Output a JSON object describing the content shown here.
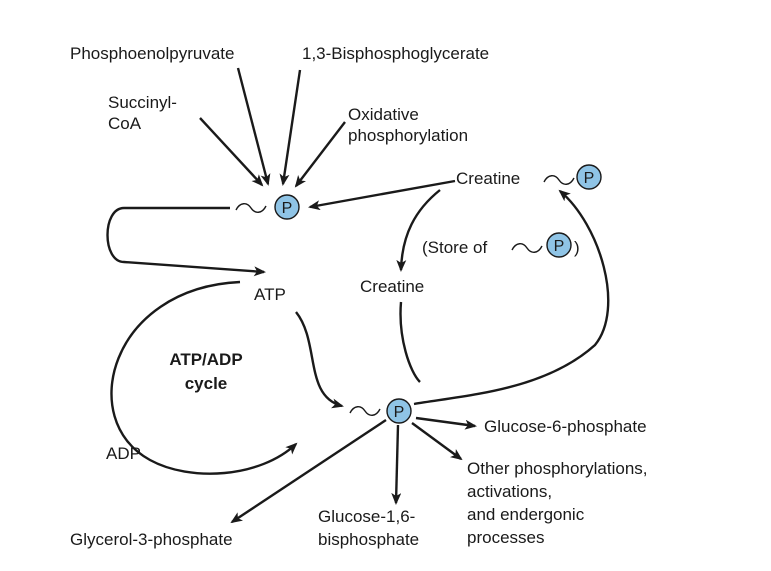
{
  "labels": {
    "phosphoenolpyruvate": "Phosphoenolpyruvate",
    "bisphosphoglycerate": "1,3-Bisphosphoglycerate",
    "succinyl_line1": "Succinyl-",
    "succinyl_line2": "CoA",
    "oxidative_line1": "Oxidative",
    "oxidative_line2": "phosphorylation",
    "creatine_p": "Creatine",
    "store_open": "(Store of",
    "store_close": ")",
    "creatine": "Creatine",
    "atp": "ATP",
    "cycle_line1": "ATP/ADP",
    "cycle_line2": "cycle",
    "adp": "ADP",
    "glucose6p": "Glucose-6-phosphate",
    "other_line1": "Other phosphorylations,",
    "other_line2": "activations,",
    "other_line3": "and endergonic",
    "other_line4": "processes",
    "glucose16_line1": "Glucose-1,6-",
    "glucose16_line2": "bisphosphate",
    "glycerol3p": "Glycerol-3-phosphate"
  },
  "phosphate_symbol": "P",
  "colors": {
    "phosphate_fill": "#8fc4e6",
    "ink": "#1a1a1a"
  }
}
